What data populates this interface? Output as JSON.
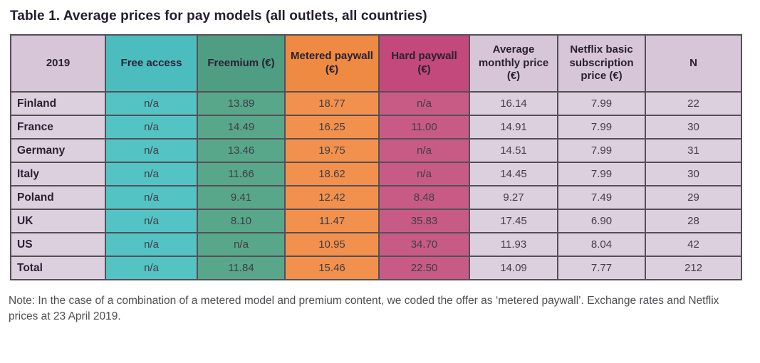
{
  "page": {
    "title": "Table 1. Average prices for pay models (all outlets, all countries)",
    "note": "Note: In the case of a combination of a metered model and premium content, we coded the offer as ‘metered paywall’. Exchange rates and Netflix prices at 23 April 2019."
  },
  "colors": {
    "lavender_header": "#d6c6d7",
    "lavender_cell": "#ddd0de",
    "teal_header": "#4bbdbf",
    "teal_cell": "#54c3c4",
    "green_header": "#4f9e83",
    "green_cell": "#58a78b",
    "orange_header": "#ee8a41",
    "orange_cell": "#f2914d",
    "magenta_header": "#c3487b",
    "magenta_cell": "#c75b86",
    "border": "#554f57",
    "header_text": "#2a2133",
    "cell_text": "#413d47"
  },
  "table": {
    "columns": [
      {
        "label": "2019",
        "header_bg": "#d6c6d7",
        "cell_bg": "#ddd0de"
      },
      {
        "label": "Free access",
        "header_bg": "#4bbdbf",
        "cell_bg": "#54c3c4"
      },
      {
        "label": "Freemium (€)",
        "header_bg": "#4f9e83",
        "cell_bg": "#58a78b"
      },
      {
        "label": "Metered paywall (€)",
        "header_bg": "#ee8a41",
        "cell_bg": "#f2914d"
      },
      {
        "label": "Hard paywall (€)",
        "header_bg": "#c3487b",
        "cell_bg": "#c75b86"
      },
      {
        "label": "Average monthly price (€)",
        "header_bg": "#d6c6d7",
        "cell_bg": "#ddd0de"
      },
      {
        "label": "Netflix basic subscription price (€)",
        "header_bg": "#d6c6d7",
        "cell_bg": "#ddd0de"
      },
      {
        "label": "N",
        "header_bg": "#d6c6d7",
        "cell_bg": "#ddd0de"
      }
    ],
    "rows": [
      {
        "label": "Finland",
        "values": [
          "n/a",
          "13.89",
          "18.77",
          "n/a",
          "16.14",
          "7.99",
          "22"
        ]
      },
      {
        "label": "France",
        "values": [
          "n/a",
          "14.49",
          "16.25",
          "11.00",
          "14.91",
          "7.99",
          "30"
        ]
      },
      {
        "label": "Germany",
        "values": [
          "n/a",
          "13.46",
          "19.75",
          "n/a",
          "14.51",
          "7.99",
          "31"
        ]
      },
      {
        "label": "Italy",
        "values": [
          "n/a",
          "11.66",
          "18.62",
          "n/a",
          "14.45",
          "7.99",
          "30"
        ]
      },
      {
        "label": "Poland",
        "values": [
          "n/a",
          "9.41",
          "12.42",
          "8.48",
          "9.27",
          "7.49",
          "29"
        ]
      },
      {
        "label": "UK",
        "values": [
          "n/a",
          "8.10",
          "11.47",
          "35.83",
          "17.45",
          "6.90",
          "28"
        ]
      },
      {
        "label": "US",
        "values": [
          "n/a",
          "n/a",
          "10.95",
          "34.70",
          "11.93",
          "8.04",
          "42"
        ]
      },
      {
        "label": "Total",
        "values": [
          "n/a",
          "11.84",
          "15.46",
          "22.50",
          "14.09",
          "7.77",
          "212"
        ]
      }
    ]
  }
}
